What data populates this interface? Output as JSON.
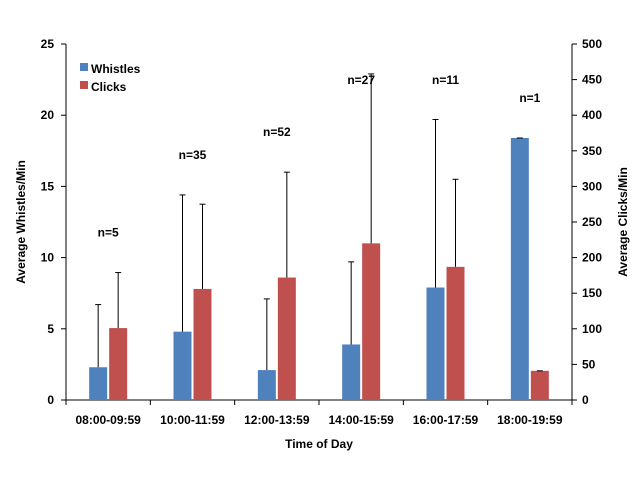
{
  "chart_data": {
    "type": "bar",
    "categories": [
      "08:00-09:59",
      "10:00-11:59",
      "12:00-13:59",
      "14:00-15:59",
      "16:00-17:59",
      "18:00-19:59"
    ],
    "series": [
      {
        "name": "Whistles",
        "axis": "left",
        "color": "#4f81bd",
        "values": [
          2.3,
          4.8,
          2.1,
          3.9,
          7.9,
          18.4
        ],
        "error_upper": [
          6.7,
          14.4,
          7.1,
          9.7,
          19.7,
          18.4
        ]
      },
      {
        "name": "Clicks",
        "axis": "right",
        "color": "#c0504d",
        "values": [
          101,
          156,
          172,
          220,
          187,
          41
        ],
        "error_upper": [
          179,
          275,
          320,
          458,
          310,
          41
        ]
      }
    ],
    "sample_sizes": [
      "n=5",
      "n=35",
      "n=52",
      "n=27",
      "n=11",
      "n=1"
    ],
    "xlabel": "Time of Day",
    "ylabel_left": "Average Whistles/Min",
    "ylabel_right": "Average Clicks/Min",
    "ylim_left": [
      0,
      25
    ],
    "ylim_right": [
      0,
      500
    ],
    "yticks_left": [
      "0",
      "5",
      "10",
      "15",
      "20",
      "25"
    ],
    "yticks_right": [
      "0",
      "50",
      "100",
      "150",
      "200",
      "250",
      "300",
      "350",
      "400",
      "450",
      "500"
    ],
    "grid": false,
    "legend_position": "top-left"
  }
}
